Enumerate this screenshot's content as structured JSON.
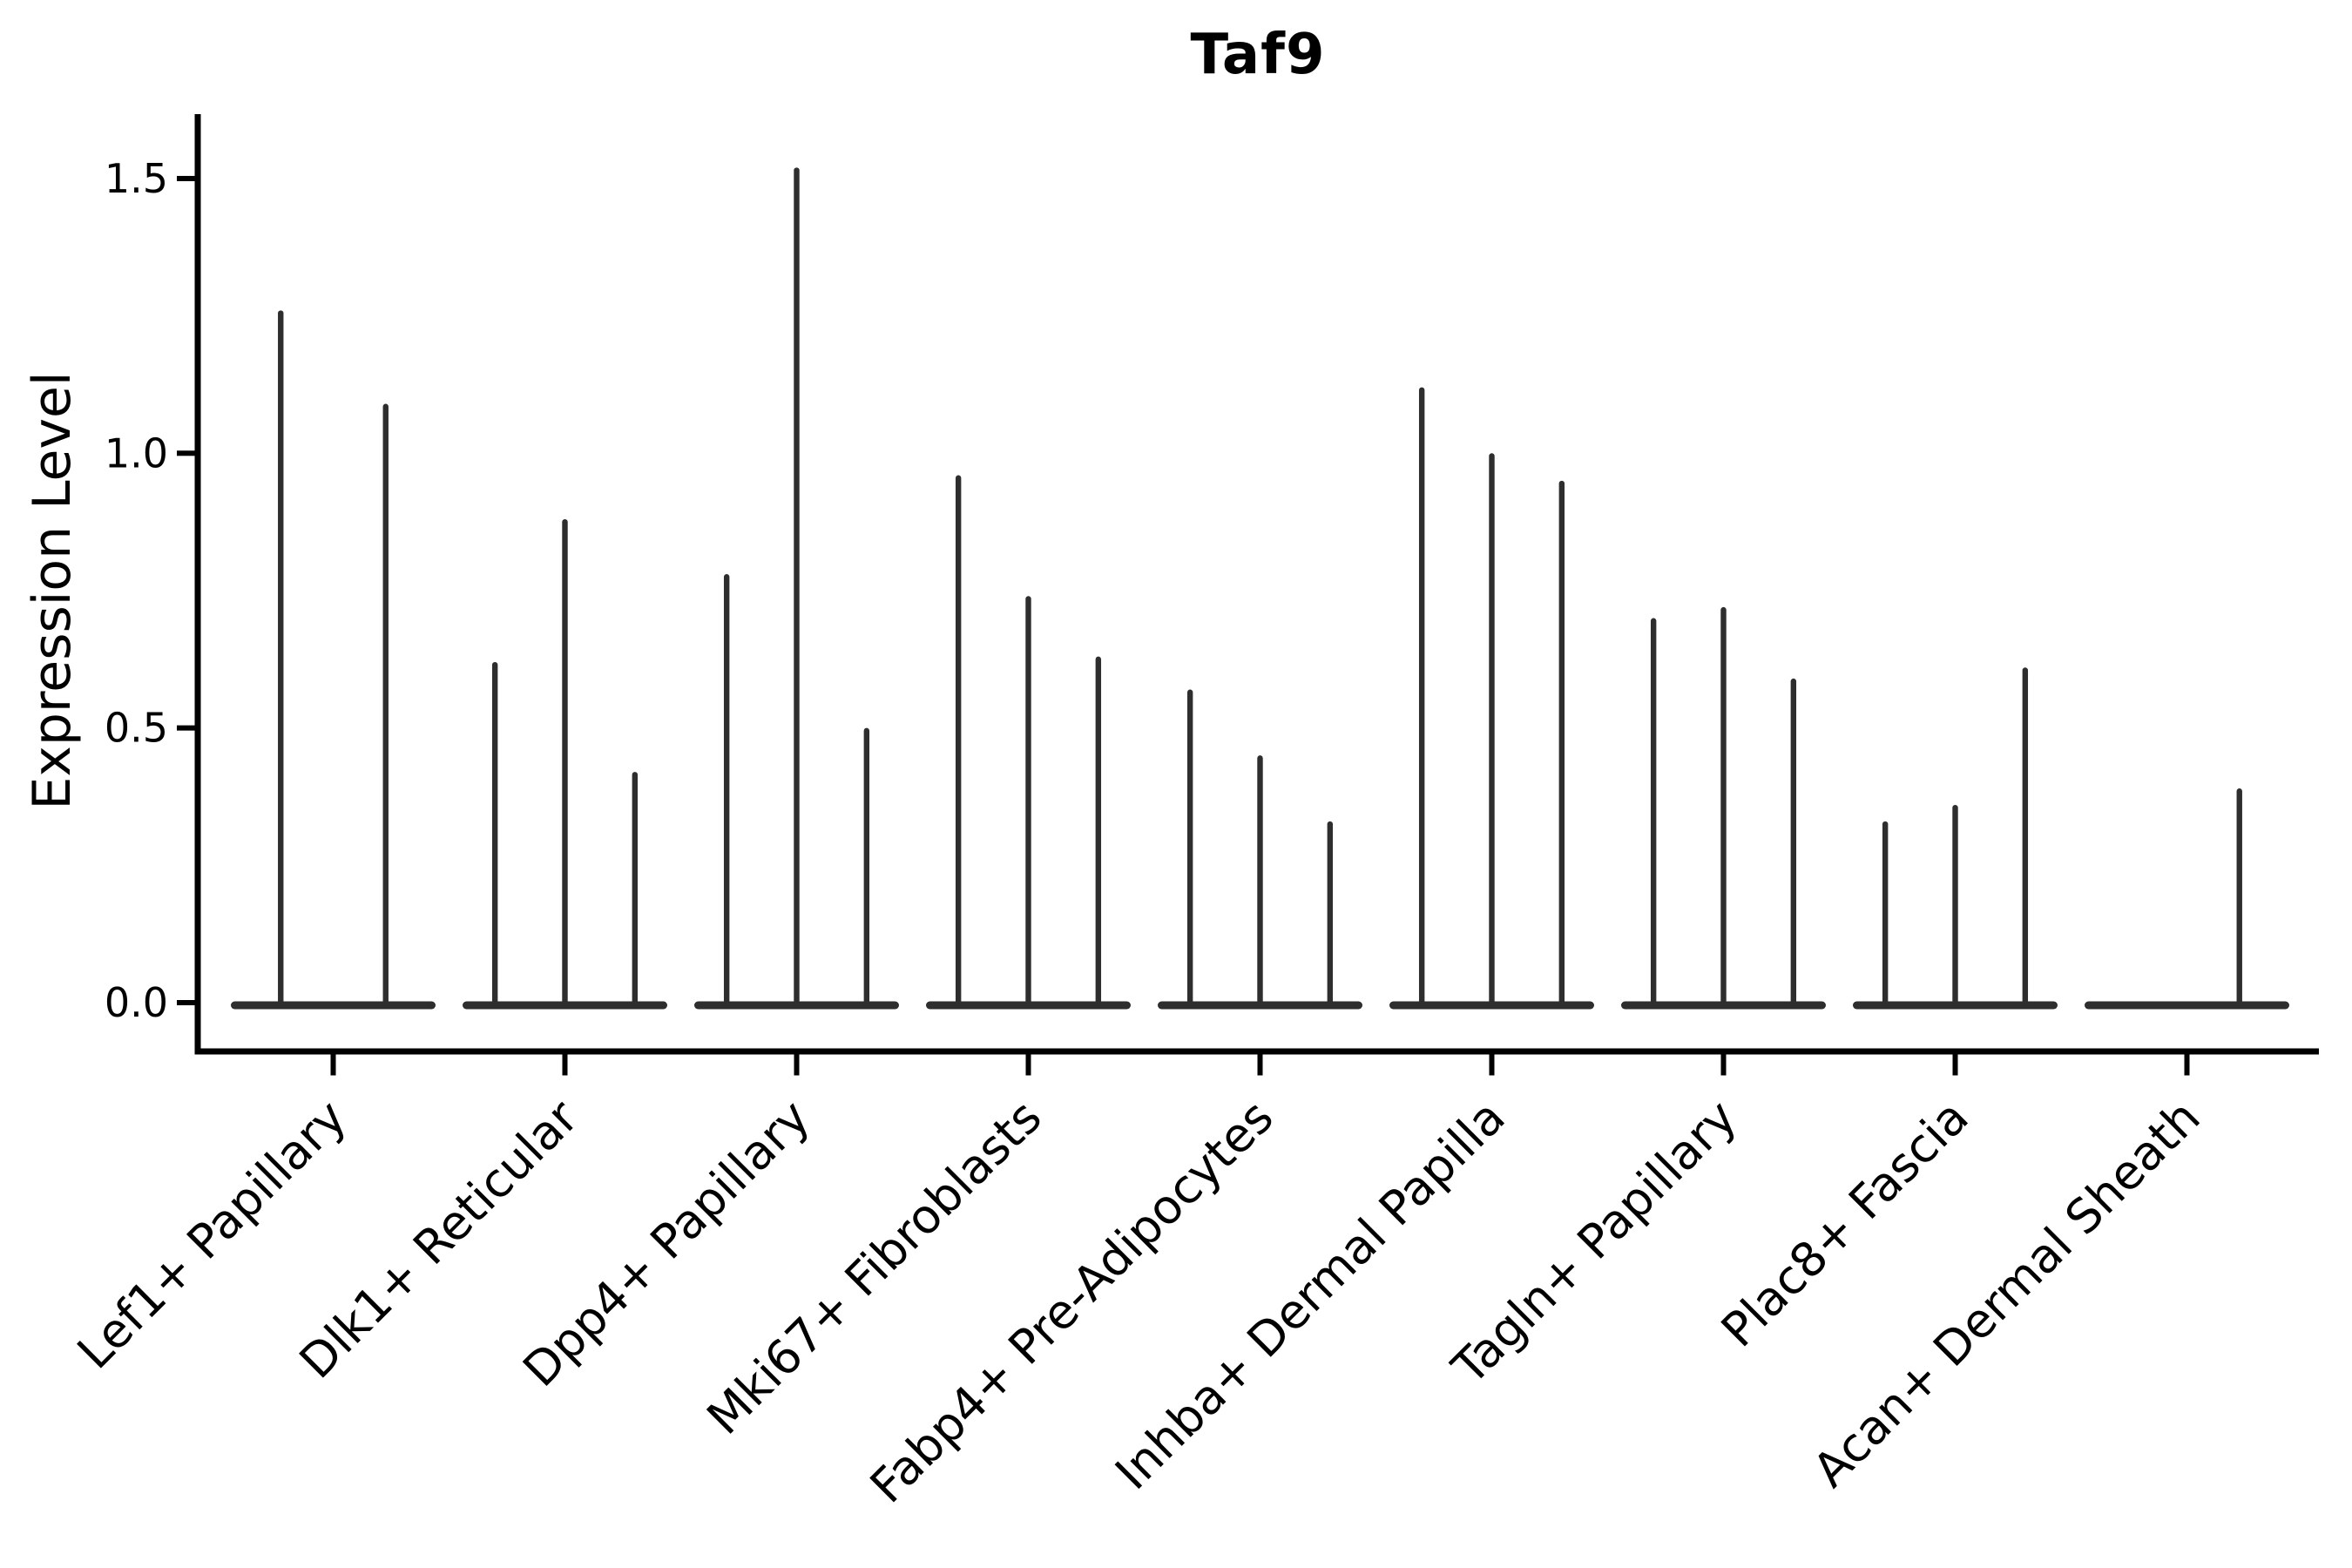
{
  "figure": {
    "title": "Taf9",
    "ylabel": "Expression Level"
  },
  "chart_data": {
    "type": "violin",
    "title": "Taf9",
    "ylabel": "Expression Level",
    "xlabel": "",
    "ylim": [
      -0.09,
      1.61
    ],
    "yticks": [
      {
        "value": 0.0,
        "label": "0.0"
      },
      {
        "value": 0.5,
        "label": "0.5"
      },
      {
        "value": 1.0,
        "label": "1.0"
      },
      {
        "value": 1.5,
        "label": "1.5"
      }
    ],
    "grid": false,
    "legend_position": "none",
    "axis_color": "#000000",
    "violin_color": "#2e2e2e",
    "categories": [
      {
        "label": "Lef1+ Papillary",
        "violin_peaks": [
          1.26,
          1.09
        ]
      },
      {
        "label": "Dlk1+ Reticular",
        "violin_peaks": [
          0.62,
          0.88,
          0.42
        ]
      },
      {
        "label": "Dpp4+ Papillary",
        "violin_peaks": [
          0.78,
          1.52,
          0.5
        ]
      },
      {
        "label": "Mki67+ Fibroblasts",
        "violin_peaks": [
          0.96,
          0.74,
          0.63
        ]
      },
      {
        "label": "Fabp4+ Pre-Adipocytes",
        "violin_peaks": [
          0.57,
          0.45,
          0.33
        ]
      },
      {
        "label": "Inhba+ Dermal Papilla",
        "violin_peaks": [
          1.12,
          1.0,
          0.95
        ]
      },
      {
        "label": "Tagln+ Papillary",
        "violin_peaks": [
          0.7,
          0.72,
          0.59
        ]
      },
      {
        "label": "Plac8+ Fascia",
        "violin_peaks": [
          0.33,
          0.36,
          0.61
        ]
      },
      {
        "label": "Acan+ Dermal Sheath",
        "violin_peaks": [
          0.0,
          0.39
        ]
      }
    ]
  }
}
